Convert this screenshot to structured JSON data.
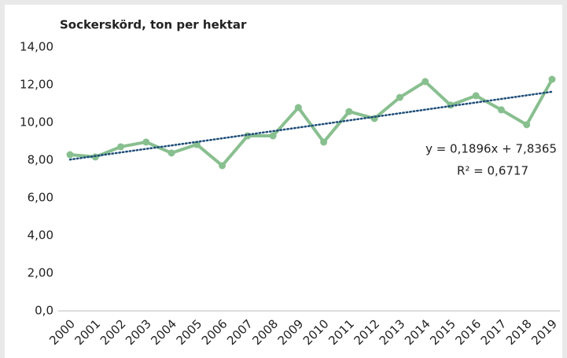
{
  "chart_data": {
    "type": "line",
    "title": "Sockerskörd, ton per hektar",
    "categories": [
      "2000",
      "2001",
      "2002",
      "2003",
      "2004",
      "2005",
      "2006",
      "2007",
      "2008",
      "2009",
      "2010",
      "2011",
      "2012",
      "2013",
      "2014",
      "2015",
      "2016",
      "2017",
      "2018",
      "2019"
    ],
    "series": [
      {
        "color": "#88bf8f",
        "values": [
          8.29,
          8.17,
          8.71,
          8.96,
          8.38,
          8.83,
          7.71,
          9.29,
          9.29,
          10.79,
          8.96,
          10.58,
          10.21,
          11.33,
          12.17,
          10.92,
          11.42,
          10.67,
          9.88,
          12.29
        ]
      }
    ],
    "trendline": {
      "color": "#1f4e79",
      "values": [
        8.03,
        8.22,
        8.41,
        8.6,
        8.78,
        8.97,
        9.16,
        9.35,
        9.54,
        9.73,
        9.92,
        10.11,
        10.3,
        10.49,
        10.68,
        10.87,
        11.06,
        11.25,
        11.44,
        11.63
      ]
    },
    "annotations": [
      "y = 0,1896x + 7,8365",
      "R² = 0,6717"
    ],
    "ylim": [
      0,
      14
    ],
    "yticks": [
      {
        "value": 0,
        "label": "0,0"
      },
      {
        "value": 2,
        "label": "2,00"
      },
      {
        "value": 4,
        "label": "4,00"
      },
      {
        "value": 6,
        "label": "6,00"
      },
      {
        "value": 8,
        "label": "8,00"
      },
      {
        "value": 10,
        "label": "10,00"
      },
      {
        "value": 12,
        "label": "12,00"
      },
      {
        "value": 14,
        "label": "14,00"
      }
    ],
    "grid": false
  }
}
